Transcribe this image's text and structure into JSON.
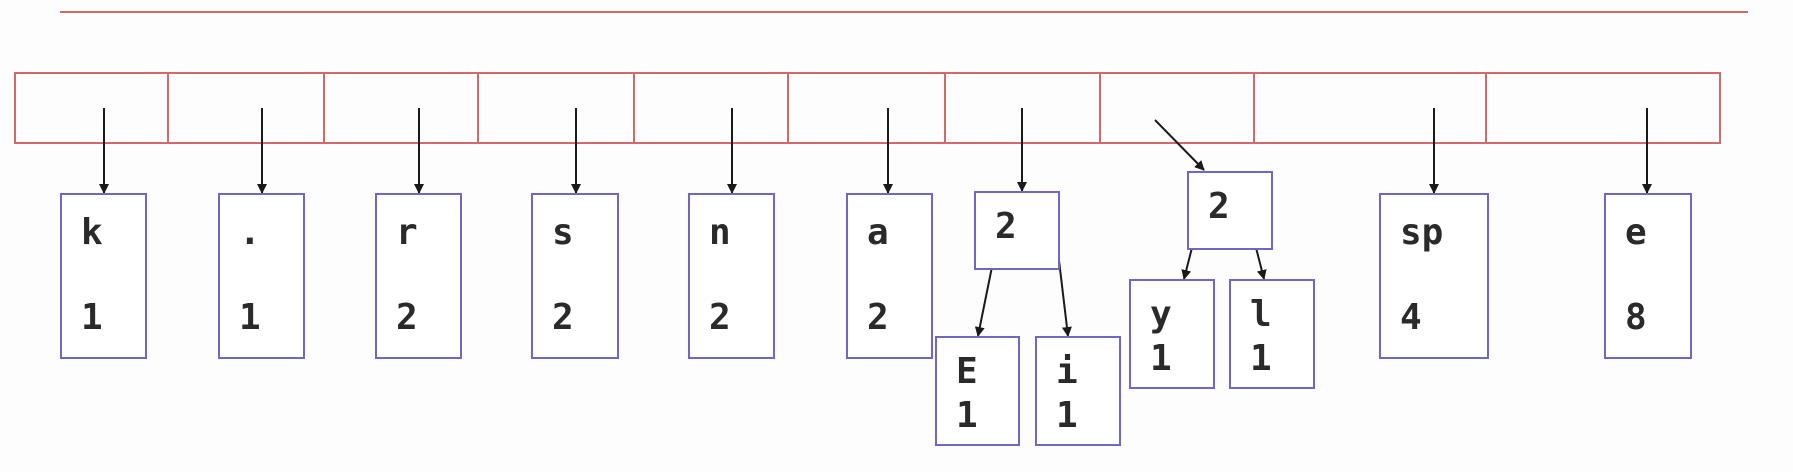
{
  "colors": {
    "array_line": "#d06a6a",
    "node_border": "#6f66c8",
    "arrow": "#1a1a1a",
    "text": "#2a2a2a"
  },
  "queue": {
    "slot_count": 11
  },
  "nodes": [
    {
      "id": "k",
      "symbol": "k",
      "weight": "1"
    },
    {
      "id": "dot",
      "symbol": ".",
      "weight": "1"
    },
    {
      "id": "r",
      "symbol": "r",
      "weight": "2"
    },
    {
      "id": "s",
      "symbol": "s",
      "weight": "2"
    },
    {
      "id": "n",
      "symbol": "n",
      "weight": "2"
    },
    {
      "id": "a",
      "symbol": "a",
      "weight": "2"
    },
    {
      "id": "t1",
      "symbol": "",
      "weight": "2"
    },
    {
      "id": "E",
      "symbol": "E",
      "weight": "1"
    },
    {
      "id": "i",
      "symbol": "i",
      "weight": "1"
    },
    {
      "id": "t2",
      "symbol": "",
      "weight": "2"
    },
    {
      "id": "y",
      "symbol": "y",
      "weight": "1"
    },
    {
      "id": "l",
      "symbol": "l",
      "weight": "1"
    },
    {
      "id": "sp",
      "symbol": "sp",
      "weight": "4"
    },
    {
      "id": "e",
      "symbol": "e",
      "weight": "8"
    }
  ],
  "edges": [
    {
      "from": "slot-0",
      "to": "k"
    },
    {
      "from": "slot-1",
      "to": "dot"
    },
    {
      "from": "slot-2",
      "to": "r"
    },
    {
      "from": "slot-3",
      "to": "s"
    },
    {
      "from": "slot-4",
      "to": "n"
    },
    {
      "from": "slot-5",
      "to": "a"
    },
    {
      "from": "slot-6",
      "to": "t1"
    },
    {
      "from": "slot-7",
      "to": "t2"
    },
    {
      "from": "slot-8",
      "to": "sp"
    },
    {
      "from": "slot-9",
      "to": "e"
    },
    {
      "from": "t1",
      "to": "E"
    },
    {
      "from": "t1",
      "to": "i"
    },
    {
      "from": "t2",
      "to": "y"
    },
    {
      "from": "t2",
      "to": "l"
    }
  ]
}
